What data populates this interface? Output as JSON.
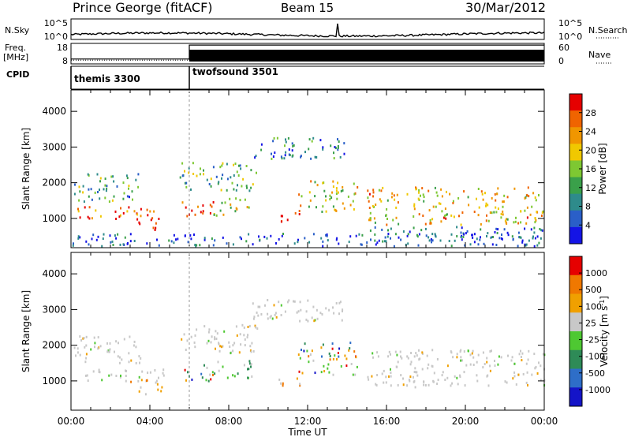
{
  "header": {
    "station": "Prince George (fitACF)",
    "beam": "Beam 15",
    "date": "30/Mar/2012"
  },
  "top_panels": {
    "nsky": {
      "left_label": "N.Sky",
      "ticks_left": [
        "10^5",
        "10^0"
      ],
      "right_label": "N.Search",
      "ticks_right": [
        "10^5",
        "10^0"
      ]
    },
    "freq": {
      "left_label_1": "Freq.",
      "left_label_2": "[MHz]",
      "ticks_left": [
        "18",
        "8"
      ],
      "right_label": "Nave",
      "ticks_right": [
        "60",
        "0"
      ],
      "freq_mhz": [
        [
          0,
          10.4
        ],
        [
          6.0,
          10.4
        ],
        [
          6.0,
          17.2
        ],
        [
          24,
          17.2
        ]
      ],
      "nave": [
        [
          0,
          11
        ],
        [
          6.0,
          11
        ],
        [
          6.0,
          22
        ],
        [
          24,
          22
        ]
      ]
    },
    "cpid": {
      "label": "CPID",
      "modes": [
        {
          "start_hr": 0,
          "end_hr": 6.0,
          "name": "themis 3300"
        },
        {
          "start_hr": 6.0,
          "end_hr": 24,
          "name": "twofsound 3501"
        }
      ]
    }
  },
  "chart_data": [
    {
      "type": "heatmap",
      "panel": "power",
      "ylabel": "Slant Range [km]",
      "xlabel": "Time UT",
      "x_ticks": [
        "00:00",
        "04:00",
        "08:00",
        "12:00",
        "16:00",
        "20:00",
        "00:00"
      ],
      "xlim_hours": [
        0,
        24
      ],
      "ylim_km": [
        180,
        4600
      ],
      "y_ticks": [
        1000,
        2000,
        3000,
        4000
      ],
      "colorbar": {
        "label": "Power [dB]",
        "ticks": [
          4,
          8,
          12,
          16,
          20,
          24,
          28
        ],
        "range": [
          0,
          32
        ],
        "colors": [
          "#1414e6",
          "#2a5fc8",
          "#2e8b8b",
          "#3aa04a",
          "#7ec832",
          "#f0c800",
          "#f09600",
          "#f06400",
          "#e60000"
        ]
      },
      "regions": [
        {
          "t": [
            0.2,
            4.8
          ],
          "r": [
            1000,
            1350
          ],
          "level": 0.85
        },
        {
          "t": [
            0.1,
            3.5
          ],
          "r": [
            1500,
            2300
          ],
          "level": 0.35
        },
        {
          "t": [
            3.3,
            4.4
          ],
          "r": [
            650,
            1050
          ],
          "level": 0.95
        },
        {
          "t": [
            5.6,
            7.2
          ],
          "r": [
            1000,
            1500
          ],
          "level": 0.95
        },
        {
          "t": [
            5.5,
            9.5
          ],
          "r": [
            1800,
            2600
          ],
          "level": 0.4
        },
        {
          "t": [
            7.2,
            9.2
          ],
          "r": [
            1100,
            1600
          ],
          "level": 0.6
        },
        {
          "t": [
            10.4,
            11.6
          ],
          "r": [
            900,
            1200
          ],
          "level": 0.95
        },
        {
          "t": [
            11.5,
            14.5
          ],
          "r": [
            1200,
            2100
          ],
          "level": 0.6
        },
        {
          "t": [
            9.0,
            14.0
          ],
          "r": [
            2700,
            3300
          ],
          "level": 0.25
        },
        {
          "t": [
            15.0,
            24.0
          ],
          "r": [
            850,
            1900
          ],
          "level": 0.65
        },
        {
          "t": [
            15.0,
            24.0
          ],
          "r": [
            400,
            800
          ],
          "level": 0.2
        },
        {
          "t": [
            0.0,
            24.0
          ],
          "r": [
            250,
            600
          ],
          "level": 0.15
        }
      ]
    },
    {
      "type": "heatmap",
      "panel": "velocity",
      "ylabel": "Slant Range [km]",
      "xlabel": "Time UT",
      "x_ticks": [
        "00:00",
        "04:00",
        "08:00",
        "12:00",
        "16:00",
        "20:00",
        "00:00"
      ],
      "xlim_hours": [
        0,
        24
      ],
      "ylim_km": [
        180,
        4600
      ],
      "y_ticks": [
        1000,
        2000,
        3000,
        4000
      ],
      "colorbar": {
        "label": "Velocity [m s",
        "label_sup": "-1",
        "label_end": "]",
        "ticks": [
          "1000",
          "500",
          "100",
          "25",
          "-25",
          "-100",
          "-500",
          "-1000"
        ],
        "colors": [
          "#1414c8",
          "#2e6ec8",
          "#2e8b57",
          "#4ec832",
          "#c8c8c8",
          "#f0a000",
          "#f07800",
          "#e60000"
        ]
      },
      "regions": [
        {
          "t": [
            0.2,
            4.8
          ],
          "r": [
            1000,
            1350
          ],
          "kind": "gray"
        },
        {
          "t": [
            3.0,
            4.6
          ],
          "r": [
            650,
            1050
          ],
          "kind": "orange"
        },
        {
          "t": [
            5.6,
            7.2
          ],
          "r": [
            1000,
            1500
          ],
          "kind": "mix"
        },
        {
          "t": [
            5.5,
            9.5
          ],
          "r": [
            1800,
            2600
          ],
          "kind": "gray"
        },
        {
          "t": [
            7.2,
            9.2
          ],
          "r": [
            1100,
            1600
          ],
          "kind": "green"
        },
        {
          "t": [
            10.4,
            11.6
          ],
          "r": [
            900,
            1200
          ],
          "kind": "orange"
        },
        {
          "t": [
            11.5,
            14.5
          ],
          "r": [
            1200,
            2100
          ],
          "kind": "mix"
        },
        {
          "t": [
            9.0,
            14.0
          ],
          "r": [
            2700,
            3300
          ],
          "kind": "gray"
        },
        {
          "t": [
            15.0,
            24.0
          ],
          "r": [
            850,
            1900
          ],
          "kind": "gray"
        },
        {
          "t": [
            0.1,
            3.5
          ],
          "r": [
            1500,
            2300
          ],
          "kind": "gray"
        }
      ]
    }
  ]
}
